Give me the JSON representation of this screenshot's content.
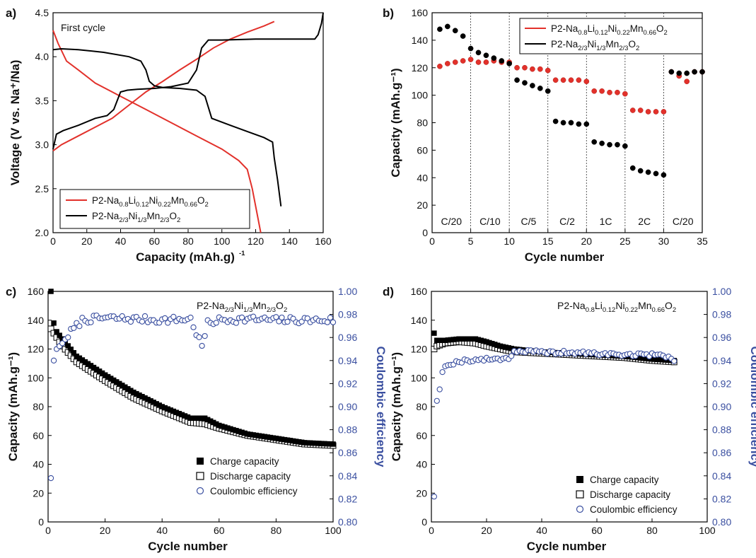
{
  "figure": {
    "colors": {
      "red": "#e2312b",
      "black": "#000000",
      "blue": "#3a4fa0"
    },
    "panels": [
      {
        "id": "a",
        "label": "a)",
        "type": "line",
        "xlabel": "Capacity (mAh.g⁻¹)",
        "ylabel": "Voltage (V vs. Na⁺/Na)",
        "xlim": [
          0,
          160
        ],
        "ylim": [
          2.0,
          4.5
        ],
        "xticks": [
          0,
          20,
          40,
          60,
          80,
          100,
          120,
          140,
          160
        ],
        "yticks": [
          2.0,
          2.5,
          3.0,
          3.5,
          4.0,
          4.5
        ],
        "annotation": "First cycle",
        "legend": [
          {
            "name": "P2-Na0.8Li0.12Ni0.22Mn0.66O2",
            "color": "red"
          },
          {
            "name": "P2-Na2/3Ni1/3Mn2/3O2",
            "color": "black"
          }
        ],
        "series": [
          {
            "name": "P2-Na0.8Li0.12Ni0.22Mn0.66O2 charge",
            "color": "red",
            "x": [
              0,
              5,
              15,
              25,
              35,
              45,
              55,
              65,
              75,
              85,
              95,
              105,
              115,
              125,
              131
            ],
            "y": [
              2.93,
              3.0,
              3.1,
              3.2,
              3.3,
              3.45,
              3.6,
              3.72,
              3.85,
              3.97,
              4.1,
              4.2,
              4.28,
              4.35,
              4.4
            ]
          },
          {
            "name": "P2-Na0.8Li0.12Ni0.22Mn0.66O2 discharge",
            "color": "red",
            "x": [
              0,
              3,
              8,
              15,
              25,
              40,
              55,
              70,
              85,
              100,
              110,
              115,
              118,
              121,
              123
            ],
            "y": [
              4.3,
              4.15,
              3.95,
              3.85,
              3.7,
              3.55,
              3.4,
              3.25,
              3.1,
              2.95,
              2.82,
              2.72,
              2.5,
              2.2,
              2.0
            ]
          },
          {
            "name": "P2-Na2/3Ni1/3Mn2/3O2 charge",
            "color": "black",
            "x": [
              0,
              2,
              6,
              15,
              25,
              32,
              36,
              38,
              40,
              44,
              50,
              60,
              70,
              80,
              85,
              88,
              92,
              100,
              120,
              140,
              155,
              157,
              159,
              160
            ],
            "y": [
              2.95,
              3.12,
              3.16,
              3.22,
              3.3,
              3.33,
              3.4,
              3.5,
              3.6,
              3.62,
              3.63,
              3.64,
              3.66,
              3.7,
              3.85,
              4.1,
              4.19,
              4.19,
              4.2,
              4.2,
              4.2,
              4.25,
              4.38,
              4.5
            ]
          },
          {
            "name": "P2-Na2/3Ni1/3Mn2/3O2 discharge",
            "color": "black",
            "x": [
              0,
              5,
              15,
              30,
              45,
              52,
              55,
              57,
              60,
              65,
              75,
              85,
              90,
              94,
              105,
              115,
              125,
              130,
              131,
              133,
              135
            ],
            "y": [
              4.08,
              4.09,
              4.08,
              4.05,
              4.0,
              3.95,
              3.85,
              3.72,
              3.67,
              3.65,
              3.64,
              3.62,
              3.55,
              3.3,
              3.22,
              3.15,
              3.08,
              3.03,
              2.85,
              2.6,
              2.3
            ]
          }
        ]
      },
      {
        "id": "b",
        "label": "b)",
        "type": "scatter",
        "xlabel": "Cycle number",
        "ylabel": "Capacity (mAh.g⁻¹)",
        "xlim": [
          0,
          35
        ],
        "ylim": [
          0,
          160
        ],
        "xticks": [
          0,
          5,
          10,
          15,
          20,
          25,
          30,
          35
        ],
        "yticks": [
          0,
          20,
          40,
          60,
          80,
          100,
          120,
          140,
          160
        ],
        "dividers": [
          5,
          10,
          15,
          20,
          25,
          30
        ],
        "rate_labels": [
          "C/20",
          "C/10",
          "C/5",
          "C/2",
          "1C",
          "2C",
          "C/20"
        ],
        "legend": [
          {
            "name": "P2-Na0.8Li0.12Ni0.22Mn0.66O2",
            "color": "red"
          },
          {
            "name": "P2-Na2/3Ni1/3Mn2/3O2",
            "color": "black"
          }
        ],
        "series": [
          {
            "name": "P2-Na0.8Li0.12Ni0.22Mn0.66O2",
            "color": "red",
            "x": [
              1,
              2,
              3,
              4,
              5,
              6,
              7,
              8,
              9,
              10,
              11,
              12,
              13,
              14,
              15,
              16,
              17,
              18,
              19,
              20,
              21,
              22,
              23,
              24,
              25,
              26,
              27,
              28,
              29,
              30,
              31,
              32,
              33,
              34,
              35
            ],
            "y": [
              121,
              123,
              124,
              125,
              126,
              124,
              124,
              125,
              124,
              124,
              120,
              120,
              119,
              119,
              118,
              111,
              111,
              111,
              111,
              110,
              103,
              103,
              102,
              102,
              101,
              89,
              89,
              88,
              88,
              88,
              117,
              114,
              110,
              117,
              117
            ]
          },
          {
            "name": "P2-Na2/3Ni1/3Mn2/3O2",
            "color": "black",
            "x": [
              1,
              2,
              3,
              4,
              5,
              6,
              7,
              8,
              9,
              10,
              11,
              12,
              13,
              14,
              15,
              16,
              17,
              18,
              19,
              20,
              21,
              22,
              23,
              24,
              25,
              26,
              27,
              28,
              29,
              30,
              31,
              32,
              33,
              34,
              35
            ],
            "y": [
              148,
              150,
              147,
              143,
              134,
              131,
              129,
              127,
              125,
              123,
              111,
              109,
              107,
              105,
              103,
              81,
              80,
              80,
              79,
              79,
              66,
              65,
              64,
              64,
              63,
              47,
              45,
              44,
              43,
              42,
              117,
              116,
              116,
              117,
              117
            ]
          }
        ]
      },
      {
        "id": "c",
        "label": "c)",
        "type": "scatter",
        "xlabel": "Cycle number",
        "ylabel": "Capacity (mAh.g⁻¹)",
        "y2label": "Coulombic efficiency",
        "xlim": [
          0,
          100
        ],
        "ylim": [
          0,
          160
        ],
        "y2lim": [
          0.8,
          1.0
        ],
        "xticks": [
          0,
          20,
          40,
          60,
          80,
          100
        ],
        "yticks": [
          0,
          20,
          40,
          60,
          80,
          100,
          120,
          140,
          160
        ],
        "y2ticks": [
          0.8,
          0.82,
          0.84,
          0.86,
          0.88,
          0.9,
          0.92,
          0.94,
          0.96,
          0.98,
          1.0
        ],
        "title": "P2-Na2/3Ni1/3Mn2/3O2",
        "legend": [
          {
            "name": "Charge capacity",
            "marker": "filled-square"
          },
          {
            "name": "Discharge capacity",
            "marker": "open-square"
          },
          {
            "name": "Coulombic efficiency",
            "marker": "open-circle"
          }
        ],
        "charge_anchors": {
          "x": [
            1,
            2,
            3,
            5,
            10,
            20,
            30,
            40,
            50,
            55,
            60,
            70,
            80,
            90,
            100
          ],
          "y": [
            160,
            138,
            132,
            127,
            115,
            102,
            90,
            80,
            72,
            72,
            67,
            61,
            58,
            55,
            54
          ]
        },
        "discharge_anchors": {
          "x": [
            1,
            2,
            3,
            5,
            10,
            20,
            30,
            40,
            50,
            55,
            60,
            70,
            80,
            90,
            100
          ],
          "y": [
            134,
            131,
            128,
            122,
            111,
            98,
            86,
            77,
            69,
            68,
            65,
            60,
            57,
            54,
            53
          ]
        },
        "ce_anchors": {
          "x": [
            1,
            2,
            3,
            5,
            8,
            12,
            20,
            30,
            40,
            50,
            54,
            55,
            56,
            60,
            70,
            80,
            90,
            100
          ],
          "y": [
            0.838,
            0.94,
            0.95,
            0.955,
            0.965,
            0.975,
            0.977,
            0.976,
            0.975,
            0.976,
            0.952,
            0.962,
            0.972,
            0.975,
            0.976,
            0.975,
            0.975,
            0.975
          ]
        }
      },
      {
        "id": "d",
        "label": "d)",
        "type": "scatter",
        "xlabel": "Cycle number",
        "ylabel": "Capacity (mAh.g⁻¹)",
        "y2label": "Coulombic efficiency",
        "xlim": [
          0,
          100
        ],
        "ylim": [
          0,
          160
        ],
        "y2lim": [
          0.8,
          1.0
        ],
        "xticks": [
          0,
          20,
          40,
          60,
          80,
          100
        ],
        "yticks": [
          0,
          20,
          40,
          60,
          80,
          100,
          120,
          140,
          160
        ],
        "y2ticks": [
          0.8,
          0.82,
          0.84,
          0.86,
          0.88,
          0.9,
          0.92,
          0.94,
          0.96,
          0.98,
          1.0
        ],
        "title": "P2-Na0.8Li0.12Ni0.22Mn0.66O2",
        "legend": [
          {
            "name": "Charge capacity",
            "marker": "filled-square"
          },
          {
            "name": "Discharge capacity",
            "marker": "open-square"
          },
          {
            "name": "Coulombic efficiency",
            "marker": "open-circle"
          }
        ],
        "charge_anchors": {
          "x": [
            1,
            2,
            5,
            10,
            16,
            20,
            25,
            30,
            40,
            50,
            60,
            70,
            80,
            88
          ],
          "y": [
            131,
            126,
            126,
            127,
            127,
            125,
            122,
            120,
            118,
            117,
            116,
            115,
            113,
            112
          ]
        },
        "discharge_anchors": {
          "x": [
            1,
            2,
            5,
            10,
            16,
            20,
            25,
            30,
            40,
            50,
            60,
            70,
            80,
            88
          ],
          "y": [
            120,
            122,
            124,
            125,
            124,
            122,
            120,
            118,
            117,
            116,
            115,
            114,
            112,
            111
          ]
        },
        "ce_anchors": {
          "x": [
            1,
            2,
            3,
            4,
            5,
            8,
            12,
            20,
            28,
            30,
            35,
            40,
            50,
            60,
            70,
            80,
            85,
            88
          ],
          "y": [
            0.822,
            0.905,
            0.915,
            0.93,
            0.935,
            0.938,
            0.94,
            0.941,
            0.942,
            0.948,
            0.948,
            0.947,
            0.947,
            0.946,
            0.945,
            0.945,
            0.944,
            0.941
          ]
        }
      }
    ]
  }
}
